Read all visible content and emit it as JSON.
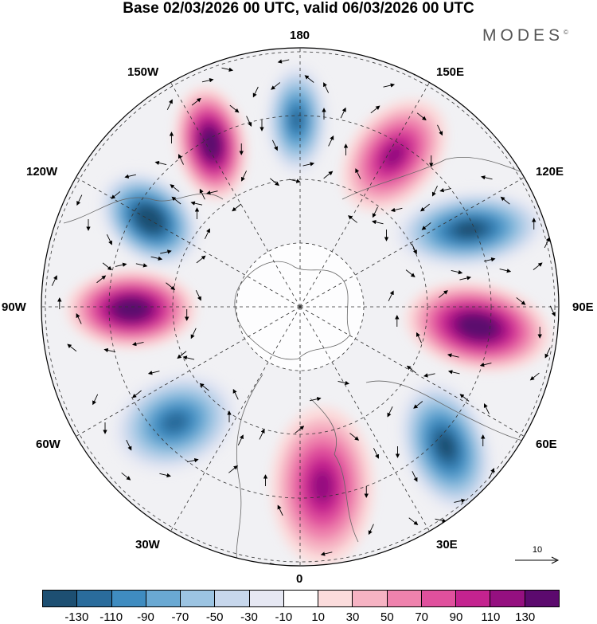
{
  "title": "Base 02/03/2026 00 UTC, valid 06/03/2026 00 UTC",
  "logo": "MODES",
  "logo_mark": "©",
  "longitude_labels": {
    "top": "180",
    "top_left": "150W",
    "top_right": "150E",
    "upper_left": "120W",
    "upper_right": "120E",
    "left": "90W",
    "right": "90E",
    "lower_left": "60W",
    "lower_right": "60E",
    "bottom_left": "30W",
    "bottom_right": "30E",
    "bottom": "0"
  },
  "reference_vector": "10",
  "colorbar": {
    "colors": [
      "#1d4f72",
      "#2a6c9c",
      "#3f8cc0",
      "#6aa9d3",
      "#9cc4e2",
      "#c7d7ec",
      "#e6e8f3",
      "#ffffff",
      "#fbdcdc",
      "#f6b3c3",
      "#ef82ad",
      "#e0509d",
      "#c4238f",
      "#951080",
      "#5c0a6e"
    ],
    "ticks": [
      "-130",
      "-110",
      "-90",
      "-70",
      "-50",
      "-30",
      "-10",
      "10",
      "30",
      "50",
      "70",
      "90",
      "110",
      "130"
    ]
  },
  "anomaly_lobes": [
    {
      "name": "lobe-90w",
      "value": 130,
      "color": "#951080"
    },
    {
      "name": "lobe-120w",
      "value": -130,
      "color": "#1d4f72"
    },
    {
      "name": "lobe-150w",
      "value": 130,
      "color": "#951080"
    },
    {
      "name": "lobe-180",
      "value": -90,
      "color": "#3f8cc0"
    },
    {
      "name": "lobe-150e",
      "value": 90,
      "color": "#e0509d"
    },
    {
      "name": "lobe-120e",
      "value": -110,
      "color": "#2a6c9c"
    },
    {
      "name": "lobe-90e",
      "value": 130,
      "color": "#951080"
    },
    {
      "name": "lobe-60e",
      "value": -110,
      "color": "#2a6c9c"
    },
    {
      "name": "lobe-0",
      "value": 90,
      "color": "#e0509d"
    },
    {
      "name": "lobe-60w",
      "value": -90,
      "color": "#3f8cc0"
    }
  ]
}
